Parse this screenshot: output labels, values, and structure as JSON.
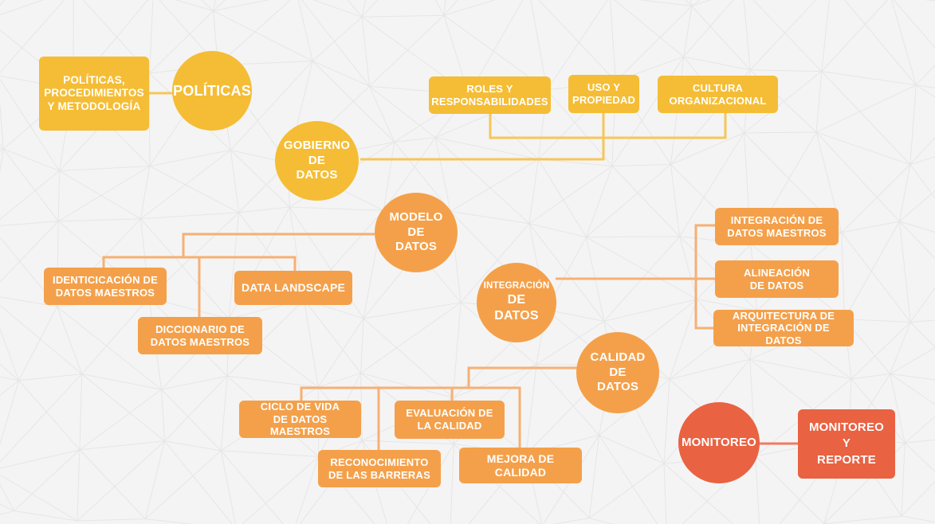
{
  "colors": {
    "background": "#f4f4f4",
    "gold": "#f5bd35",
    "orange": "#f4a04a",
    "coral": "#e96242",
    "gold_line": "#f6c65a",
    "orange_line": "#f6b073"
  },
  "nodes": {
    "politicas_circle": "POLÍTICAS",
    "politicas_box": "POLÍTICAS,\nPROCEDIMIENTOS\nY METODOLOGÍA",
    "gobierno_circle": "GOBIERNO\nDE\nDATOS",
    "roles_box": "ROLES Y\nRESPONSABILIDADES",
    "uso_box": "USO Y\nPROPIEDAD",
    "cultura_box": "CULTURA\nORGANIZACIONAL",
    "modelo_circle": "MODELO\nDE\nDATOS",
    "identificacion_box": "IDENTICICACIÓN DE\nDATOS MAESTROS",
    "diccionario_box": "DICCIONARIO DE\nDATOS MAESTROS",
    "landscape_box": "DATA LANDSCAPE",
    "integracion_circle_top": "INTEGRACIÓN",
    "integracion_circle_bottom": "DE\nDATOS",
    "integracion_maestros_box": "INTEGRACIÓN DE\nDATOS MAESTROS",
    "alineacion_box": "ALINEACIÓN\nDE DATOS",
    "arquitectura_box": "ARQUITECTURA DE\nINTEGRACIÓN DE DATOS",
    "calidad_circle": "CALIDAD\nDE\nDATOS",
    "ciclo_box": "CICLO DE VIDA\nDE DATOS MAESTROS",
    "reconocimiento_box": "RECONOCIMIENTO\nDE LAS BARRERAS",
    "evaluacion_box": "EVALUACIÓN DE\nLA CALIDAD",
    "mejora_box": "MEJORA DE CALIDAD",
    "monitoreo_circle": "MONITOREO",
    "monitoreo_box": "MONITOREO\nY\nREPORTE"
  }
}
